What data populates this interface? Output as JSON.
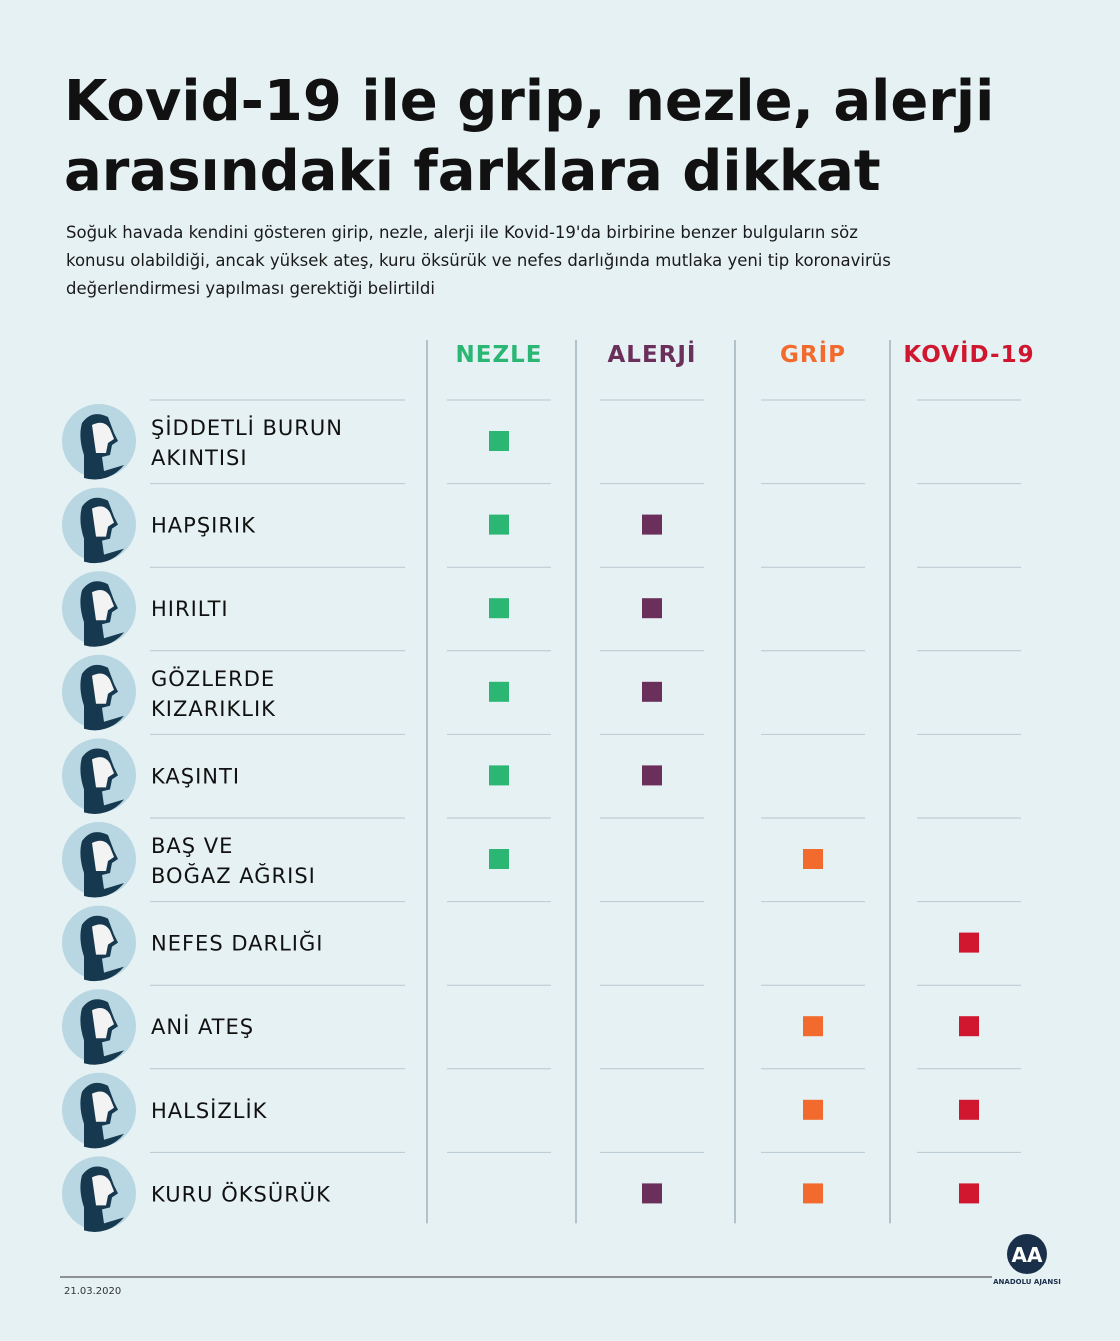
{
  "header": {
    "title": [
      "Kovid-19 ile grip, nezle, alerji",
      "arasındaki farklara dikkat"
    ],
    "subtitle": [
      "Soğuk havada kendini gösteren girip, nezle, alerji ile Kovid-19'da birbirine benzer bulguların söz",
      "konusu olabildiği, ancak yüksek ateş, kuru öksürük ve nefes darlığında mutlaka yeni tip koronavirüs",
      "değerlendirmesi yapılması gerektiği belirtildi"
    ]
  },
  "table": {
    "columns": [
      {
        "name": "NEZLE",
        "color": "#2bb673"
      },
      {
        "name": "ALERJİ",
        "color": "#6b2f5c"
      },
      {
        "name": "GRİP",
        "color": "#f26a2e"
      },
      {
        "name": "KOVİD-19",
        "color": "#d0172f"
      }
    ],
    "rows": [
      {
        "label": [
          "ŞİDDETLİ BURUN",
          "AKINTISI"
        ],
        "cells": [
          true,
          false,
          false,
          false
        ]
      },
      {
        "label": [
          "HAPŞIRIK"
        ],
        "cells": [
          true,
          true,
          false,
          false
        ]
      },
      {
        "label": [
          "HIRILTI"
        ],
        "cells": [
          true,
          true,
          false,
          false
        ]
      },
      {
        "label": [
          "GÖZLERDE",
          "KIZARIKLIK"
        ],
        "cells": [
          true,
          true,
          false,
          false
        ]
      },
      {
        "label": [
          "KAŞINTI"
        ],
        "cells": [
          true,
          true,
          false,
          false
        ]
      },
      {
        "label": [
          "BAŞ VE",
          "BOĞAZ AĞRISI"
        ],
        "cells": [
          true,
          false,
          true,
          false
        ]
      },
      {
        "label": [
          "NEFES DARLIĞI"
        ],
        "cells": [
          false,
          false,
          false,
          true
        ]
      },
      {
        "label": [
          "ANİ ATEŞ"
        ],
        "cells": [
          false,
          false,
          true,
          true
        ]
      },
      {
        "label": [
          "HALSİZLİK"
        ],
        "cells": [
          false,
          false,
          true,
          true
        ]
      },
      {
        "label": [
          "KURU ÖKSÜRÜK"
        ],
        "cells": [
          false,
          true,
          true,
          true
        ]
      }
    ]
  },
  "footer": {
    "date": "21.03.2020",
    "logo": "AA",
    "agency": "ANADOLU AJANSI"
  }
}
